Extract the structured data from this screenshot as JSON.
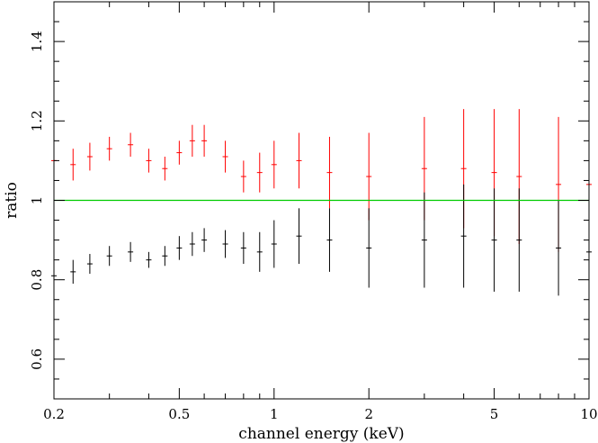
{
  "chart_data": {
    "type": "scatter",
    "title": "",
    "xlabel": "channel energy (keV)",
    "ylabel": "ratio",
    "x_scale": "log",
    "xlim": [
      0.2,
      10
    ],
    "ylim": [
      0.5,
      1.5
    ],
    "x_ticks": [
      {
        "value": 0.2,
        "label": "0.2"
      },
      {
        "value": 0.5,
        "label": "0.5"
      },
      {
        "value": 1,
        "label": "1"
      },
      {
        "value": 2,
        "label": "2"
      },
      {
        "value": 5,
        "label": "5"
      },
      {
        "value": 10,
        "label": "10"
      }
    ],
    "y_ticks": [
      {
        "value": 0.6,
        "label": "0.6"
      },
      {
        "value": 0.8,
        "label": "0.8"
      },
      {
        "value": 1.0,
        "label": "1"
      },
      {
        "value": 1.2,
        "label": "1.2"
      },
      {
        "value": 1.4,
        "label": "1.4"
      }
    ],
    "reference_line": {
      "y": 1.0,
      "color": "#00cc00"
    },
    "series": [
      {
        "color": "#ff0000",
        "x": [
          0.2,
          0.23,
          0.26,
          0.3,
          0.35,
          0.4,
          0.45,
          0.5,
          0.55,
          0.6,
          0.7,
          0.8,
          0.9,
          1.0,
          1.2,
          1.5,
          2.0,
          3.0,
          4.0,
          5.0,
          6.0,
          8.0,
          10.0
        ],
        "y": [
          1.1,
          1.09,
          1.11,
          1.13,
          1.14,
          1.1,
          1.08,
          1.12,
          1.15,
          1.15,
          1.11,
          1.06,
          1.07,
          1.09,
          1.1,
          1.07,
          1.06,
          1.08,
          1.08,
          1.07,
          1.06,
          1.04,
          1.04
        ],
        "err": [
          0.04,
          0.04,
          0.035,
          0.03,
          0.03,
          0.03,
          0.03,
          0.03,
          0.04,
          0.04,
          0.04,
          0.04,
          0.05,
          0.06,
          0.07,
          0.09,
          0.11,
          0.13,
          0.15,
          0.16,
          0.17,
          0.17,
          0.17
        ]
      },
      {
        "color": "#000000",
        "x": [
          0.2,
          0.23,
          0.26,
          0.3,
          0.35,
          0.4,
          0.45,
          0.5,
          0.55,
          0.6,
          0.7,
          0.8,
          0.9,
          1.0,
          1.2,
          1.5,
          2.0,
          3.0,
          4.0,
          5.0,
          6.0,
          8.0,
          10.0
        ],
        "y": [
          0.81,
          0.82,
          0.84,
          0.86,
          0.87,
          0.85,
          0.86,
          0.88,
          0.89,
          0.9,
          0.89,
          0.88,
          0.87,
          0.89,
          0.91,
          0.9,
          0.88,
          0.9,
          0.91,
          0.9,
          0.9,
          0.88,
          0.87
        ],
        "err": [
          0.03,
          0.03,
          0.025,
          0.025,
          0.025,
          0.02,
          0.025,
          0.03,
          0.03,
          0.03,
          0.035,
          0.04,
          0.05,
          0.06,
          0.07,
          0.08,
          0.1,
          0.12,
          0.13,
          0.13,
          0.13,
          0.12,
          0.12
        ]
      }
    ]
  }
}
